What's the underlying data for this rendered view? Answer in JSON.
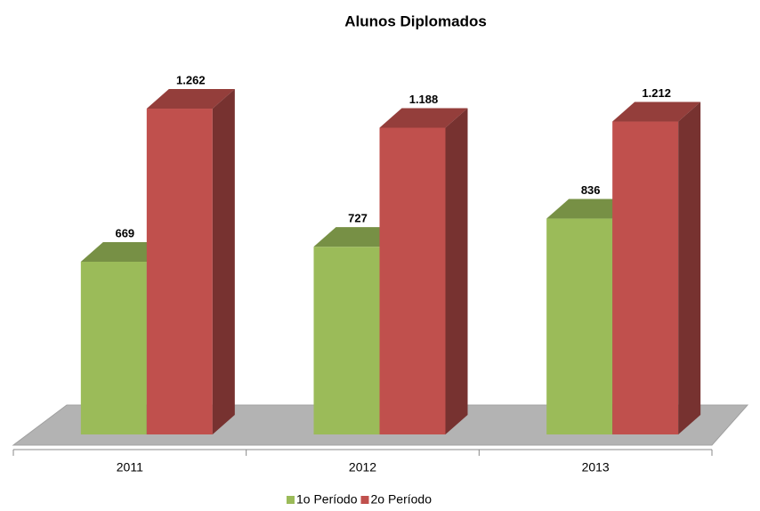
{
  "chart_data": {
    "type": "bar3d",
    "title": "Alunos Diplomados",
    "categories": [
      "2011",
      "2012",
      "2013"
    ],
    "series": [
      {
        "name": "1o Período",
        "color": "#9bbb59",
        "values": [
          669,
          727,
          836
        ],
        "value_labels": [
          "669",
          "727",
          "836"
        ]
      },
      {
        "name": "2o Período",
        "color": "#c0504d",
        "values": [
          1262,
          1188,
          1212
        ],
        "value_labels": [
          "1.262",
          "1.188",
          "1.212"
        ]
      }
    ],
    "legend": "bottom"
  }
}
